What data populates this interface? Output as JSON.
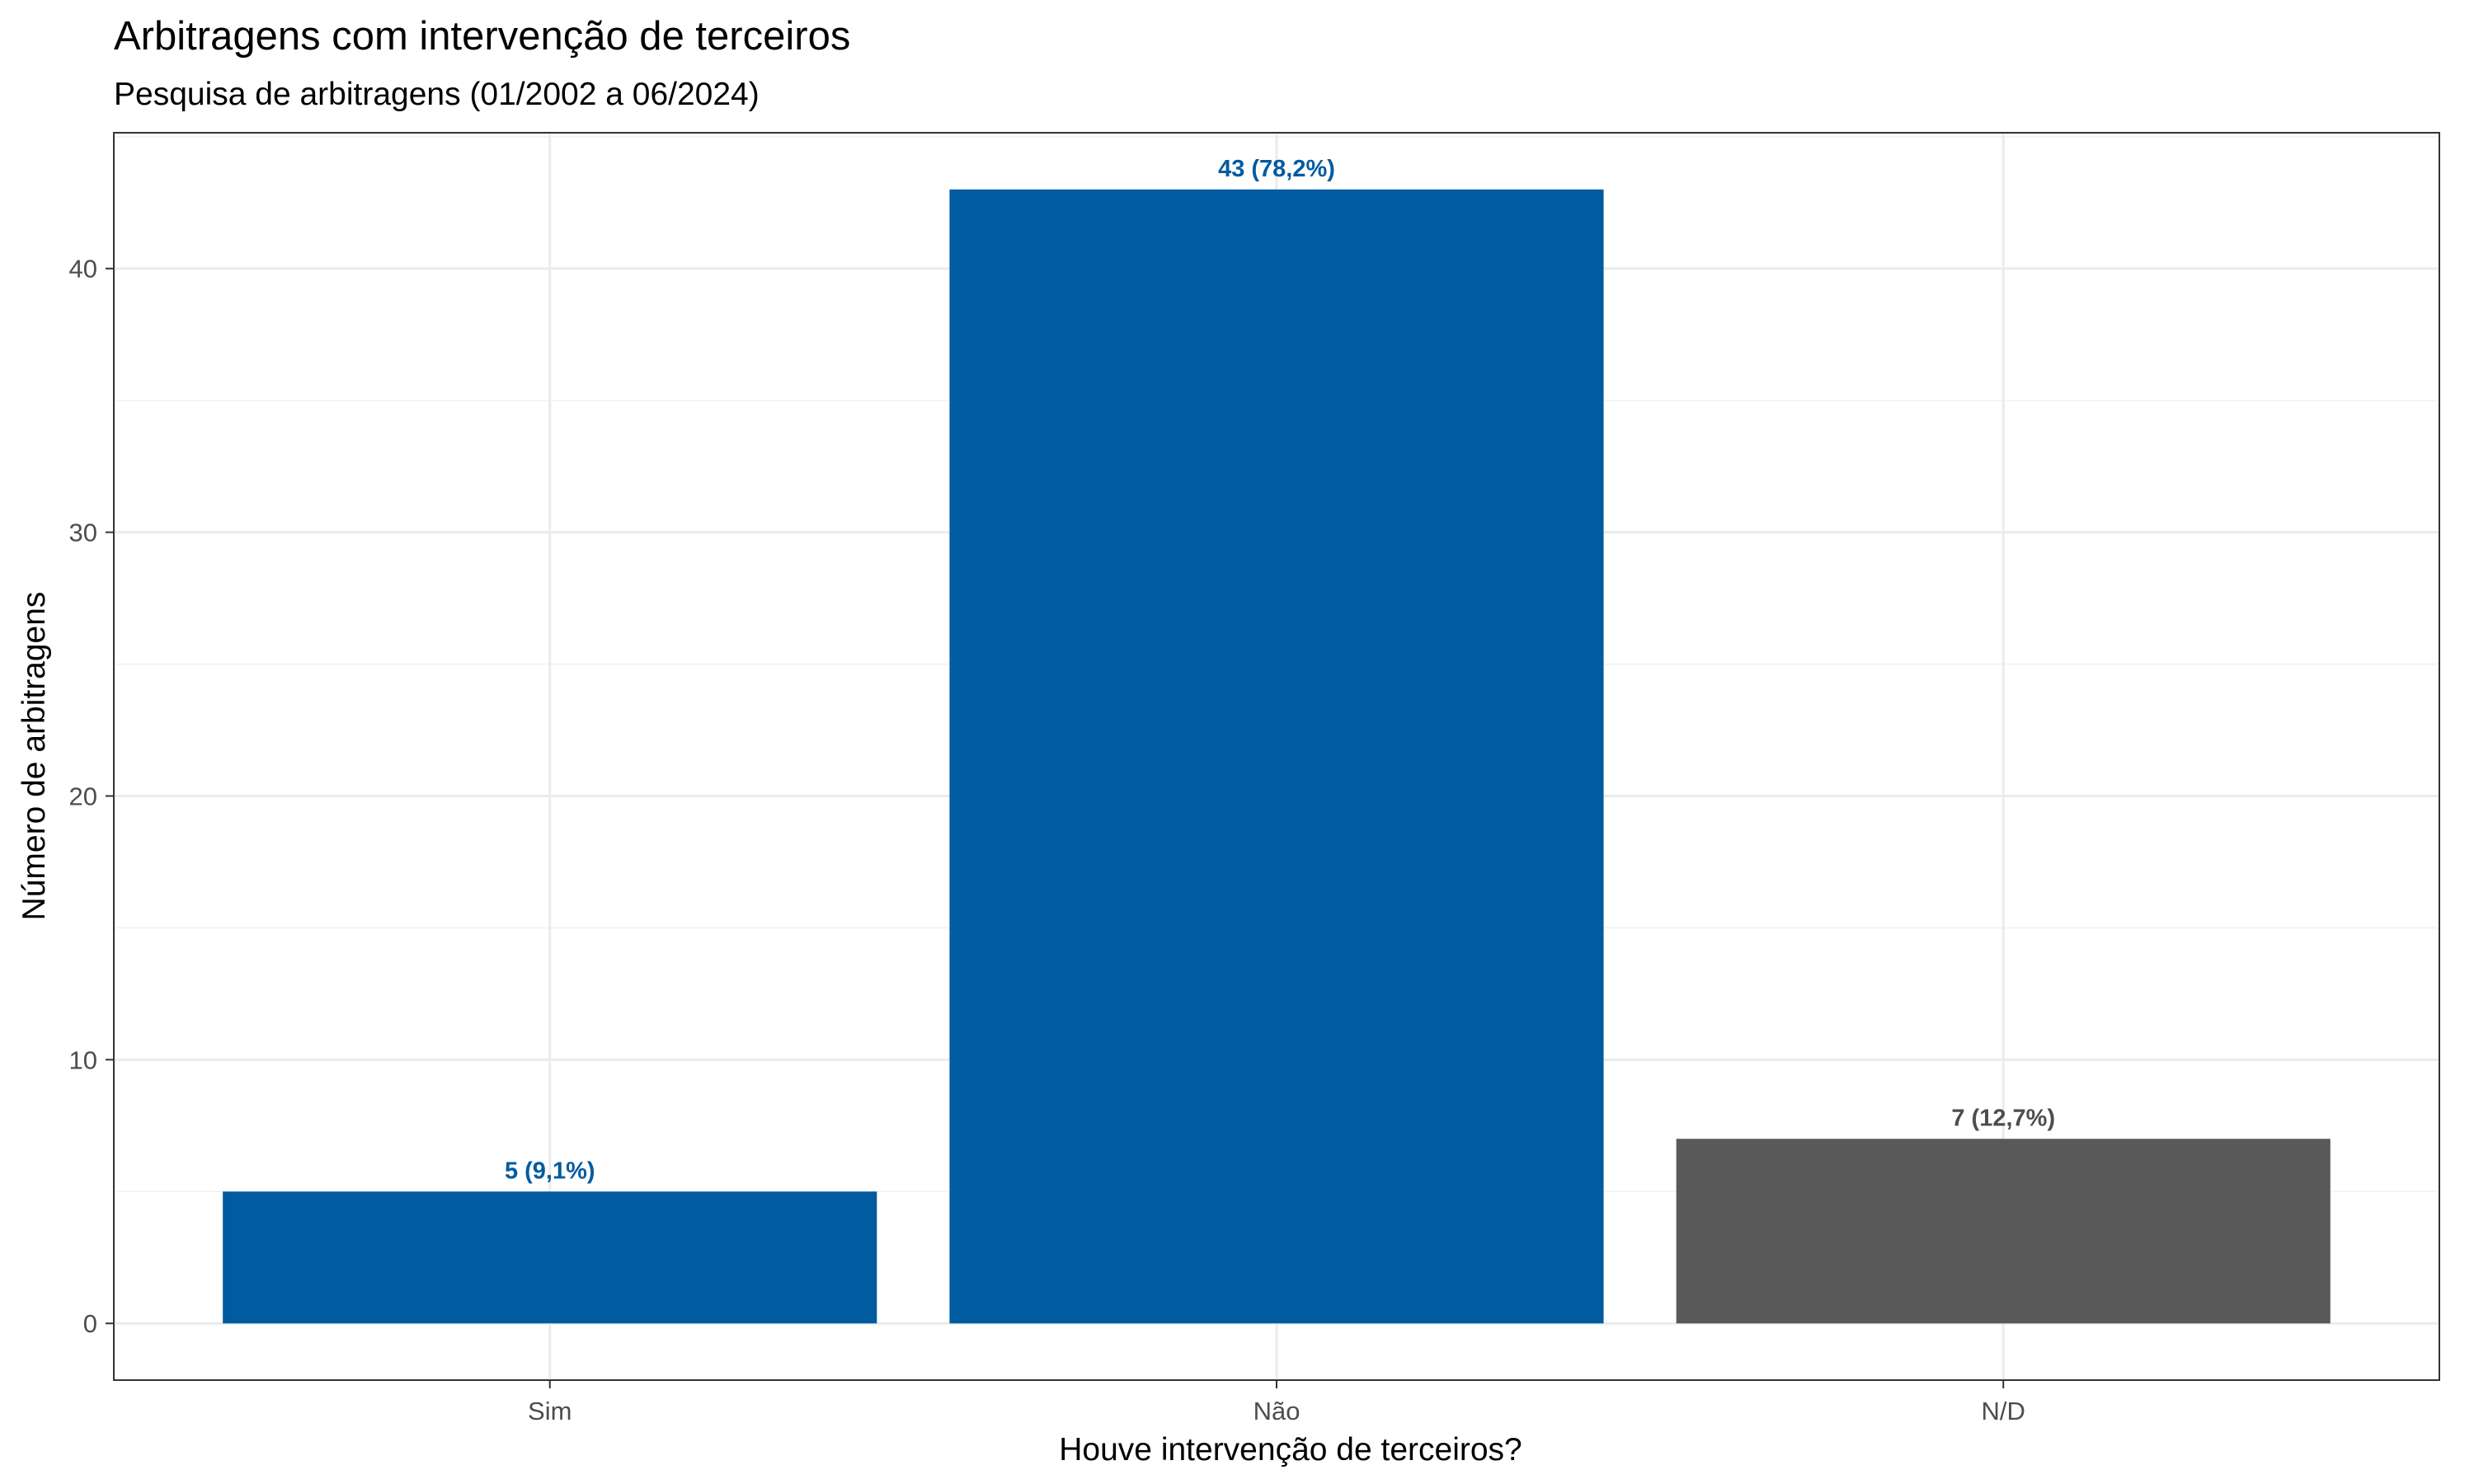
{
  "chart_data": {
    "type": "bar",
    "title": "Arbitragens com intervenção de terceiros",
    "subtitle": "Pesquisa de arbitragens (01/2002 a 06/2024)",
    "xlabel": "Houve intervenção de terceiros?",
    "ylabel": "Número de arbitragens",
    "categories": [
      "Sim",
      "Não",
      "N/D"
    ],
    "values": [
      5,
      43,
      7
    ],
    "data_labels": [
      "5 (9,1%)",
      "43 (78,2%)",
      "7 (12,7%)"
    ],
    "colors": [
      "#005BA0",
      "#005BA0",
      "#595959"
    ],
    "label_colors": [
      "#005BA0",
      "#005BA0",
      "#4d4d4d"
    ],
    "y_ticks": [
      0,
      10,
      20,
      30,
      40
    ],
    "ylim": [
      -2.15,
      45.15
    ],
    "grid": true,
    "legend": "none"
  }
}
